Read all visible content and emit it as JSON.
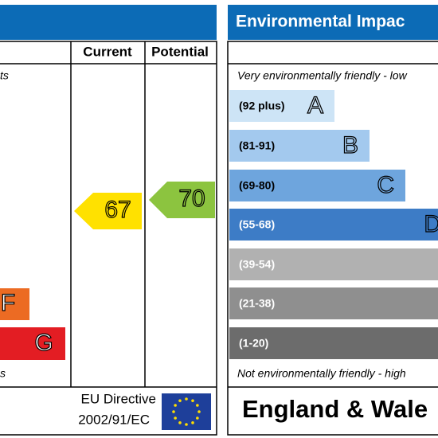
{
  "energy": {
    "columns": [
      "Current",
      "Potential"
    ],
    "top_note": "ts",
    "bottom_note": "s",
    "bands": [
      {
        "letter": "F"
      },
      {
        "letter": "G"
      }
    ],
    "current": 67,
    "potential": 70,
    "directive": [
      "EU Directive",
      "2002/91/EC"
    ]
  },
  "environmental": {
    "title": "Environmental Impac",
    "top_note": "Very environmentally friendly - low",
    "bottom_note": "Not environmentally friendly - high",
    "region": "England & Wale",
    "bands": [
      {
        "range": "(92 plus)",
        "letter": "A"
      },
      {
        "range": "(81-91)",
        "letter": "B"
      },
      {
        "range": "(69-80)",
        "letter": "C"
      },
      {
        "range": "(55-68)",
        "letter": "D"
      },
      {
        "range": "(39-54)"
      },
      {
        "range": "(21-38)"
      },
      {
        "range": "(1-20)"
      }
    ]
  }
}
